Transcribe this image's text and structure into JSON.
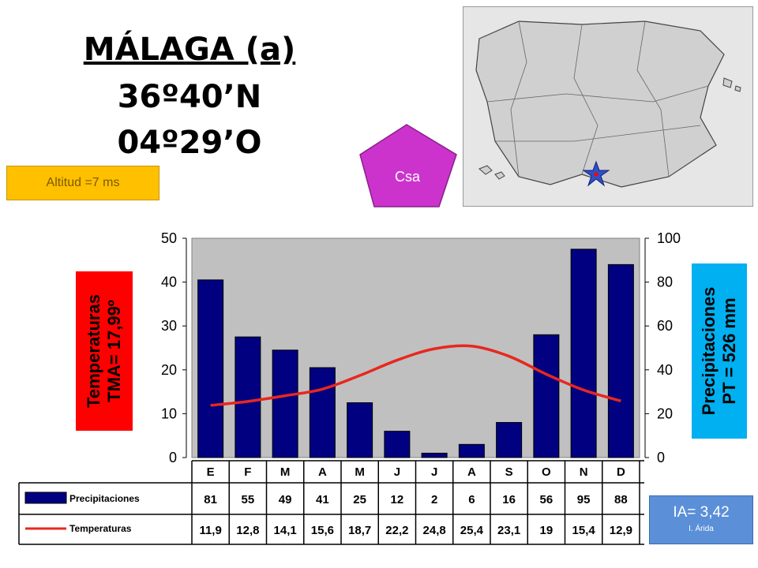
{
  "station": {
    "name": "MÁLAGA (a)",
    "lat": "36º40’N",
    "lon": "04º29’O",
    "altitude": "Altitud =7 ms",
    "climate": "Csa",
    "ia_value": "IA= 3,42",
    "ia_label": "I. Árida"
  },
  "labels": {
    "temp_axis_line1": "Temperaturas",
    "temp_axis_line2": "TMA= 17,99º",
    "prec_axis_line1": "Precipitaciones",
    "prec_axis_line2": "PT = 526 mm",
    "row_prec": "Precipitaciones",
    "row_temp": "Temperaturas"
  },
  "colors": {
    "bar": "#000080",
    "line": "#e8271f",
    "plot_bg": "#c0c0c0",
    "temp_label_bg": "#ff0000",
    "prec_label_bg": "#00b0f0",
    "altitude_bg": "#ffc000",
    "climate_badge": "#cc33cc",
    "ia_bg": "#5b8fd8"
  },
  "chart_data": {
    "type": "bar",
    "categories": [
      "E",
      "F",
      "M",
      "A",
      "M",
      "J",
      "J",
      "A",
      "S",
      "O",
      "N",
      "D"
    ],
    "series": [
      {
        "name": "Precipitaciones",
        "type": "bar",
        "axis": "right",
        "values": [
          81,
          55,
          49,
          41,
          25,
          12,
          2,
          6,
          16,
          56,
          95,
          88
        ],
        "labels": [
          "81",
          "55",
          "49",
          "41",
          "25",
          "12",
          "2",
          "6",
          "16",
          "56",
          "95",
          "88"
        ]
      },
      {
        "name": "Temperaturas",
        "type": "line",
        "axis": "left",
        "values": [
          11.9,
          12.8,
          14.1,
          15.6,
          18.7,
          22.2,
          24.8,
          25.4,
          23.1,
          19,
          15.4,
          12.9
        ],
        "labels": [
          "11,9",
          "12,8",
          "14,1",
          "15,6",
          "18,7",
          "22,2",
          "24,8",
          "25,4",
          "23,1",
          "19",
          "15,4",
          "12,9"
        ]
      }
    ],
    "y_left": {
      "min": 0,
      "max": 50,
      "ticks": [
        "0",
        "10",
        "20",
        "30",
        "40",
        "50"
      ]
    },
    "y_right": {
      "min": 0,
      "max": 100,
      "ticks": [
        "0",
        "20",
        "40",
        "60",
        "80",
        "100"
      ]
    },
    "grid": false,
    "legend": "bottom-left table"
  }
}
